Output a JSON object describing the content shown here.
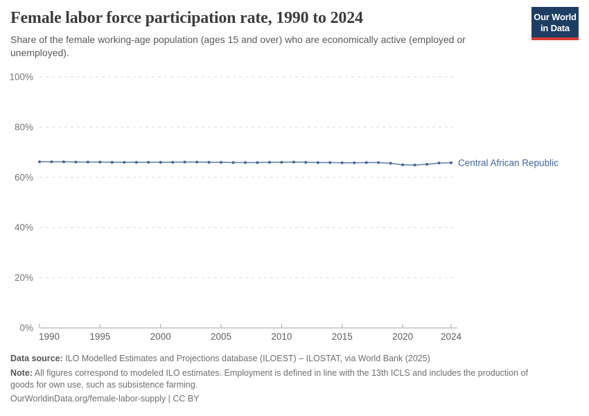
{
  "header": {
    "title": "Female labor force participation rate, 1990 to 2024",
    "subtitle": "Share of the female working-age population (ages 15 and over) who are economically active (employed or unemployed).",
    "logo": {
      "line1": "Our World",
      "line2": "in Data",
      "bg_color": "#1d3d63",
      "accent_color": "#d73c34"
    }
  },
  "chart_data": {
    "type": "line",
    "title": "Female labor force participation rate, 1990 to 2024",
    "xlabel": "",
    "ylabel": "",
    "xlim": [
      1990,
      2024
    ],
    "ylim": [
      0,
      100
    ],
    "x_ticks": [
      1990,
      1995,
      2000,
      2005,
      2010,
      2015,
      2020,
      2024
    ],
    "y_ticks": [
      0,
      20,
      40,
      60,
      80,
      100
    ],
    "y_tick_suffix": "%",
    "grid": "horizontal-dashed",
    "legend_position": "end-of-line-label",
    "series": [
      {
        "name": "Central African Republic",
        "color": "#44659b",
        "x": [
          1990,
          1991,
          1992,
          1993,
          1994,
          1995,
          1996,
          1997,
          1998,
          1999,
          2000,
          2001,
          2002,
          2003,
          2004,
          2005,
          2006,
          2007,
          2008,
          2009,
          2010,
          2011,
          2012,
          2013,
          2014,
          2015,
          2016,
          2017,
          2018,
          2019,
          2020,
          2021,
          2022,
          2023,
          2024
        ],
        "values": [
          66.2,
          66.2,
          66.2,
          66.1,
          66.1,
          66.1,
          66.0,
          66.0,
          66.0,
          66.0,
          66.0,
          66.0,
          66.1,
          66.1,
          66.0,
          66.0,
          65.9,
          65.9,
          65.9,
          66.0,
          66.0,
          66.1,
          66.0,
          65.9,
          65.9,
          65.8,
          65.8,
          65.9,
          65.9,
          65.6,
          65.0,
          64.9,
          65.2,
          65.7,
          65.8
        ]
      }
    ]
  },
  "footer": {
    "data_source_label": "Data source:",
    "data_source_text": "ILO Modelled Estimates and Projections database (ILOEST) – ILOSTAT, via World Bank (2025)",
    "note_label": "Note:",
    "note_text": "All figures correspond to modeled ILO estimates. Employment is defined in line with the 13th ICLS and includes the production of goods for own use, such as subsistence farming.",
    "url": "OurWorldinData.org/female-labor-supply",
    "separator": "|",
    "license": "CC BY"
  }
}
